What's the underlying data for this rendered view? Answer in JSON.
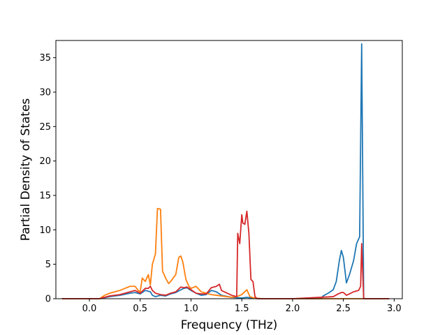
{
  "chart_data": {
    "type": "line",
    "title": "",
    "xlabel": "Frequency (THz)",
    "ylabel": "Partial Density of States",
    "xlim": [
      -0.33,
      3.08
    ],
    "ylim": [
      0,
      37.5
    ],
    "xticks": [
      0.0,
      0.5,
      1.0,
      1.5,
      2.0,
      2.5,
      3.0
    ],
    "xtick_labels": [
      "0.0",
      "0.5",
      "1.0",
      "1.5",
      "2.0",
      "2.5",
      "3.0"
    ],
    "yticks": [
      0,
      5,
      10,
      15,
      20,
      25,
      30,
      35
    ],
    "ytick_labels": [
      "0",
      "5",
      "10",
      "15",
      "20",
      "25",
      "30",
      "35"
    ],
    "grid": false,
    "legend": "none",
    "series": [
      {
        "color": "#1f77b4",
        "x": [
          -0.27,
          0.1,
          0.2,
          0.3,
          0.4,
          0.45,
          0.5,
          0.55,
          0.6,
          0.62,
          0.65,
          0.7,
          0.75,
          0.8,
          0.85,
          0.9,
          0.93,
          0.96,
          1.0,
          1.05,
          1.1,
          1.15,
          1.2,
          1.25,
          1.3,
          1.4,
          1.5,
          1.55,
          1.6,
          1.7,
          2.0,
          2.28,
          2.3,
          2.35,
          2.4,
          2.43,
          2.46,
          2.48,
          2.5,
          2.53,
          2.56,
          2.6,
          2.63,
          2.66,
          2.68,
          2.7,
          2.95
        ],
        "y": [
          0,
          0,
          0.3,
          0.5,
          0.8,
          0.9,
          0.7,
          1.2,
          1.0,
          0.5,
          0.3,
          0.5,
          0.4,
          0.7,
          0.9,
          1.3,
          1.5,
          1.6,
          1.2,
          0.8,
          0.5,
          0.6,
          1.2,
          1.0,
          0.5,
          0.2,
          0.1,
          0.2,
          0.1,
          0,
          0,
          0,
          0.4,
          0.8,
          1.3,
          2.5,
          5.5,
          7.0,
          6.0,
          2.3,
          3.5,
          5.5,
          8.0,
          9.0,
          37.0,
          0,
          0
        ]
      },
      {
        "color": "#ff7f0e",
        "x": [
          -0.27,
          0.1,
          0.15,
          0.2,
          0.25,
          0.3,
          0.35,
          0.4,
          0.45,
          0.48,
          0.5,
          0.52,
          0.55,
          0.58,
          0.6,
          0.62,
          0.65,
          0.67,
          0.7,
          0.72,
          0.75,
          0.78,
          0.8,
          0.85,
          0.88,
          0.9,
          0.92,
          0.95,
          0.98,
          1.0,
          1.05,
          1.1,
          1.15,
          1.2,
          1.25,
          1.3,
          1.35,
          1.4,
          1.45,
          1.5,
          1.55,
          1.58,
          1.62,
          1.7,
          2.95
        ],
        "y": [
          0,
          0,
          0.5,
          0.8,
          1.0,
          1.2,
          1.5,
          1.8,
          1.8,
          1.2,
          1.0,
          3.0,
          2.5,
          3.5,
          2.0,
          5.0,
          6.5,
          13.1,
          13.0,
          4.0,
          3.0,
          2.2,
          2.5,
          3.5,
          6.0,
          6.2,
          5.3,
          2.8,
          1.8,
          1.5,
          1.8,
          1.0,
          0.8,
          0.6,
          0.5,
          0.4,
          0.3,
          0.2,
          0.3,
          0.6,
          1.3,
          0.3,
          0.1,
          0,
          0
        ]
      },
      {
        "color": "#d62728",
        "x": [
          -0.27,
          0.1,
          0.2,
          0.3,
          0.4,
          0.45,
          0.5,
          0.55,
          0.58,
          0.6,
          0.62,
          0.65,
          0.7,
          0.75,
          0.8,
          0.85,
          0.9,
          0.93,
          0.96,
          1.0,
          1.05,
          1.1,
          1.15,
          1.2,
          1.25,
          1.28,
          1.3,
          1.4,
          1.45,
          1.46,
          1.48,
          1.5,
          1.51,
          1.53,
          1.55,
          1.57,
          1.59,
          1.61,
          1.63,
          1.65,
          1.7,
          2.0,
          2.4,
          2.45,
          2.48,
          2.5,
          2.53,
          2.56,
          2.6,
          2.65,
          2.67,
          2.68,
          2.7,
          2.95
        ],
        "y": [
          0,
          0,
          0.4,
          0.6,
          1.0,
          1.2,
          0.8,
          1.5,
          1.5,
          1.8,
          1.2,
          0.8,
          0.6,
          0.5,
          0.8,
          1.0,
          1.7,
          1.6,
          1.7,
          1.3,
          0.8,
          0.7,
          0.7,
          1.6,
          1.8,
          2.1,
          1.2,
          0.5,
          0.3,
          9.5,
          8.0,
          12.2,
          11.0,
          10.8,
          12.7,
          9.5,
          2.8,
          2.5,
          0.3,
          0,
          0,
          0,
          0.3,
          0.7,
          0.9,
          0.9,
          0.5,
          0.7,
          1.0,
          1.2,
          1.8,
          8.0,
          0,
          0
        ]
      }
    ]
  }
}
